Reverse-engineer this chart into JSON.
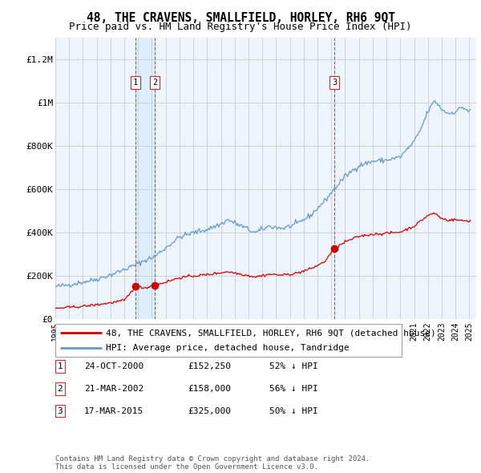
{
  "title": "48, THE CRAVENS, SMALLFIELD, HORLEY, RH6 9QT",
  "subtitle": "Price paid vs. HM Land Registry's House Price Index (HPI)",
  "ylim": [
    0,
    1300000
  ],
  "yticks": [
    0,
    200000,
    400000,
    600000,
    800000,
    1000000,
    1200000
  ],
  "ytick_labels": [
    "£0",
    "£200K",
    "£400K",
    "£600K",
    "£800K",
    "£1M",
    "£1.2M"
  ],
  "xlim_left": 1995.0,
  "xlim_right": 2025.5,
  "red_color": "#cc0000",
  "blue_color": "#6699cc",
  "blue_shade_color": "#ddeeff",
  "vline_color": "#cc3333",
  "grid_color": "#cccccc",
  "background_color": "#eef4fb",
  "sale_decimal_years": [
    2000.8167,
    2002.2167,
    2015.2167
  ],
  "sale_prices": [
    152250,
    158000,
    325000
  ],
  "sale_labels": [
    "1",
    "2",
    "3"
  ],
  "legend_red": "48, THE CRAVENS, SMALLFIELD, HORLEY, RH6 9QT (detached house)",
  "legend_blue": "HPI: Average price, detached house, Tandridge",
  "table_entries": [
    {
      "label": "1",
      "date": "24-OCT-2000",
      "price": "£152,250",
      "pct": "52% ↓ HPI"
    },
    {
      "label": "2",
      "date": "21-MAR-2002",
      "price": "£158,000",
      "pct": "56% ↓ HPI"
    },
    {
      "label": "3",
      "date": "17-MAR-2015",
      "price": "£325,000",
      "pct": "50% ↓ HPI"
    }
  ],
  "footer": "Contains HM Land Registry data © Crown copyright and database right 2024.\nThis data is licensed under the Open Government Licence v3.0.",
  "title_fontsize": 10.5,
  "subtitle_fontsize": 9,
  "ytick_fontsize": 8,
  "xtick_fontsize": 7,
  "legend_fontsize": 8,
  "table_fontsize": 8,
  "footer_fontsize": 6.5
}
